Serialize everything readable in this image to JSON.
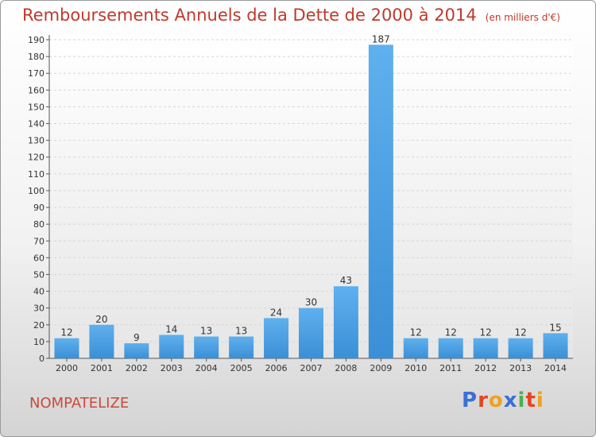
{
  "chart_data": {
    "type": "bar",
    "title": "Remboursements Annuels de la Dette de 2000 à 2014",
    "subtitle": "(en milliers d'€)",
    "categories": [
      "2000",
      "2001",
      "2002",
      "2003",
      "2004",
      "2005",
      "2006",
      "2007",
      "2008",
      "2009",
      "2010",
      "2011",
      "2012",
      "2013",
      "2014"
    ],
    "values": [
      12,
      20,
      9,
      14,
      13,
      13,
      24,
      30,
      43,
      187,
      12,
      12,
      12,
      12,
      15
    ],
    "ylim": [
      0,
      190
    ],
    "yticks": [
      0,
      10,
      20,
      30,
      40,
      50,
      60,
      70,
      80,
      90,
      100,
      110,
      120,
      130,
      140,
      150,
      160,
      170,
      180,
      190
    ],
    "grid": true,
    "bar_color": "#3a8fd6",
    "title_color": "#c0392b"
  },
  "footer": {
    "commune": "NOMPATELIZE",
    "logo_letters": [
      "P",
      "r",
      "o",
      "x",
      "i",
      "t",
      "i"
    ],
    "logo_colors": [
      "#3a6fd6",
      "#e8441e",
      "#f0a020",
      "#3a6fd6",
      "#4caf50",
      "#e8441e",
      "#f0a020"
    ]
  }
}
